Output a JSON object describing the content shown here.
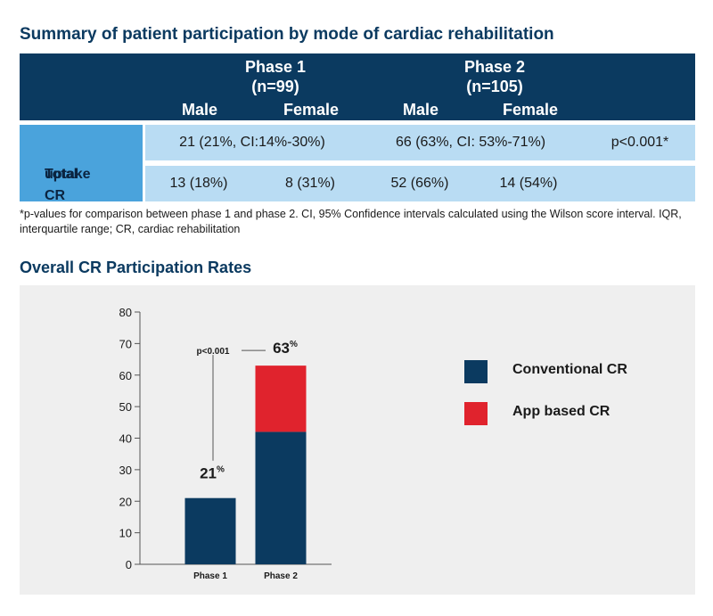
{
  "table": {
    "title": "Summary of patient participation by mode of cardiac rehabilitation",
    "phase1": {
      "name": "Phase 1",
      "n": "(n=99)"
    },
    "phase2": {
      "name": "Phase 2",
      "n": "(n=105)"
    },
    "col_male": "Male",
    "col_female": "Female",
    "row_label_line1": "Total CR",
    "row_label_line2": "uptake",
    "row1": {
      "phase1_total": "21 (21%, CI:14%-30%)",
      "phase2_total": "66 (63%, CI: 53%-71%)",
      "pvalue": "p<0.001*"
    },
    "row2": {
      "phase1_male": "13 (18%)",
      "phase1_female": "8 (31%)",
      "phase2_male": "52 (66%)",
      "phase2_female": "14 (54%)"
    },
    "footnote": "*p-values for comparison between phase 1 and phase 2. CI, 95% Confidence intervals calculated using the Wilson score interval.  IQR, interquartile range; CR, cardiac rehabilitation"
  },
  "chart_data": {
    "type": "bar",
    "stacked": true,
    "title": "Overall CR Participation Rates",
    "categories": [
      "Phase 1",
      "Phase 2"
    ],
    "series": [
      {
        "name": "Conventional CR",
        "values": [
          21,
          42
        ],
        "color": "#0b3a60"
      },
      {
        "name": "App based CR",
        "values": [
          0,
          21
        ],
        "color": "#e0232d"
      }
    ],
    "totals": [
      21,
      63
    ],
    "total_labels": [
      "21",
      "63"
    ],
    "total_suffix": "%",
    "ylim": [
      0,
      80
    ],
    "yticks": [
      0,
      10,
      20,
      30,
      40,
      50,
      60,
      70,
      80
    ],
    "annotation": "p<0.001",
    "xlabel": "",
    "ylabel": "",
    "legend_position": "right"
  }
}
